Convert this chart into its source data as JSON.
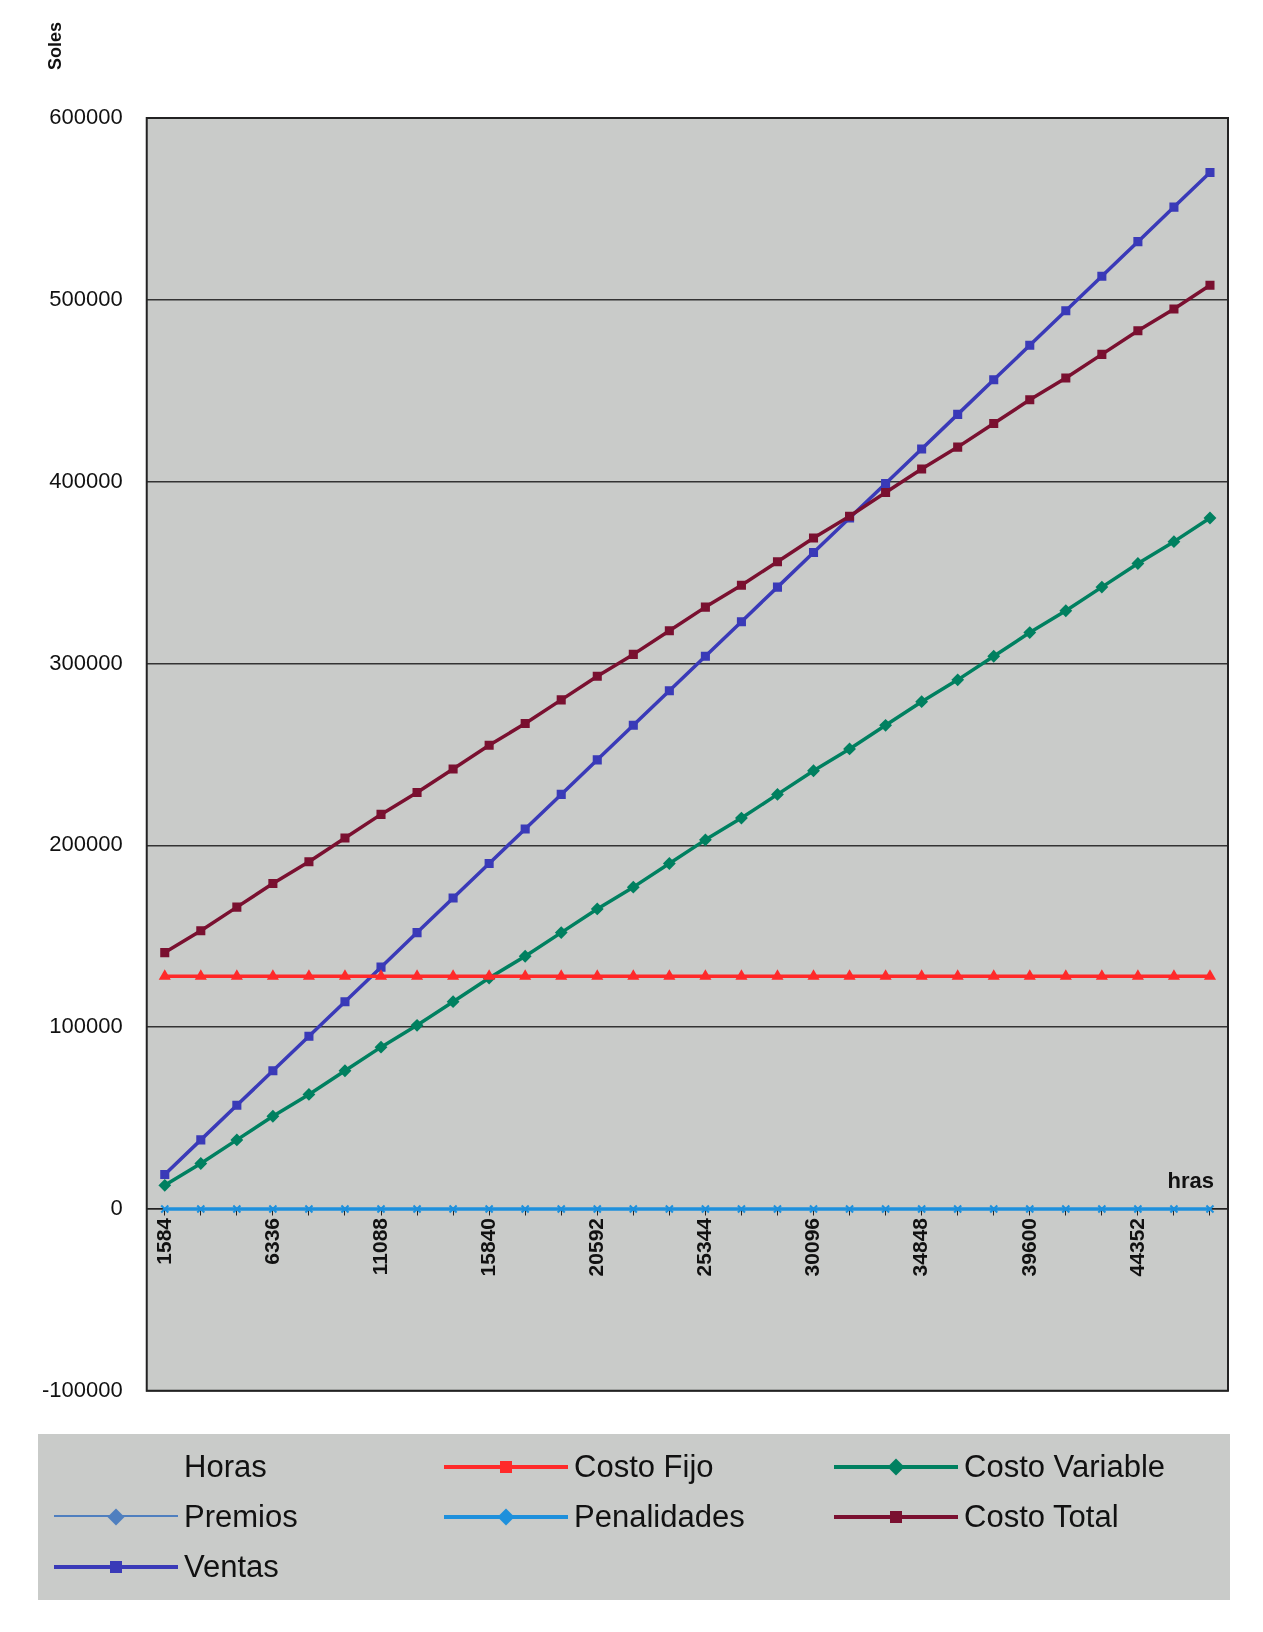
{
  "chart_data": {
    "type": "line",
    "ylabel": "Soles",
    "xlabel": "hras",
    "categories": [
      "1584",
      null,
      null,
      "6336",
      null,
      null,
      "11088",
      null,
      null,
      "15840",
      null,
      null,
      "20592",
      null,
      null,
      "25344",
      null,
      null,
      "30096",
      null,
      null,
      "34848",
      null,
      null,
      "39600",
      null,
      null,
      "44352",
      null,
      null
    ],
    "ylim": [
      -100000,
      600000
    ],
    "yticks": [
      -100000,
      0,
      100000,
      200000,
      300000,
      400000,
      500000,
      600000
    ],
    "grid": "y",
    "legend": "bottom",
    "series": [
      {
        "name": "Horas",
        "values": [
          null,
          null,
          null,
          null,
          null,
          null,
          null,
          null,
          null,
          null,
          null,
          null,
          null,
          null,
          null,
          null,
          null,
          null,
          null,
          null,
          null,
          null,
          null,
          null,
          null,
          null,
          null,
          null,
          null,
          null
        ]
      },
      {
        "name": "Costo Fijo",
        "color": "#ff2a2a",
        "marker": "triangle",
        "values": [
          128000,
          128000,
          128000,
          128000,
          128000,
          128000,
          128000,
          128000,
          128000,
          128000,
          128000,
          128000,
          128000,
          128000,
          128000,
          128000,
          128000,
          128000,
          128000,
          128000,
          128000,
          128000,
          128000,
          128000,
          128000,
          128000,
          128000,
          128000,
          128000,
          128000
        ]
      },
      {
        "name": "Costo Variable",
        "color": "#008060",
        "marker": "diamond",
        "values": [
          13000,
          25000,
          38000,
          51000,
          63000,
          76000,
          89000,
          101000,
          114000,
          127000,
          139000,
          152000,
          165000,
          177000,
          190000,
          203000,
          215000,
          228000,
          241000,
          253000,
          266000,
          279000,
          291000,
          304000,
          317000,
          329000,
          342000,
          355000,
          367000,
          380000
        ]
      },
      {
        "name": "Premios",
        "color": "#4f7fbf",
        "marker": "diamond",
        "values": [
          null,
          null,
          null,
          null,
          null,
          null,
          null,
          null,
          null,
          null,
          null,
          null,
          null,
          null,
          null,
          null,
          null,
          null,
          null,
          null,
          null,
          null,
          null,
          null,
          null,
          null,
          null,
          null,
          null,
          null
        ]
      },
      {
        "name": "Penalidades",
        "color": "#1e90dc",
        "marker": "cross",
        "values": [
          0,
          0,
          0,
          0,
          0,
          0,
          0,
          0,
          0,
          0,
          0,
          0,
          0,
          0,
          0,
          0,
          0,
          0,
          0,
          0,
          0,
          0,
          0,
          0,
          0,
          0,
          0,
          0,
          0,
          0
        ]
      },
      {
        "name": "Costo Total",
        "color": "#7a1030",
        "marker": "square",
        "values": [
          141000,
          153000,
          166000,
          179000,
          191000,
          204000,
          217000,
          229000,
          242000,
          255000,
          267000,
          280000,
          293000,
          305000,
          318000,
          331000,
          343000,
          356000,
          369000,
          381000,
          394000,
          407000,
          419000,
          432000,
          445000,
          457000,
          470000,
          483000,
          495000,
          508000
        ]
      },
      {
        "name": "Ventas",
        "color": "#3a3ab8",
        "marker": "square",
        "values": [
          19000,
          38000,
          57000,
          76000,
          95000,
          114000,
          133000,
          152000,
          171000,
          190000,
          209000,
          228000,
          247000,
          266000,
          285000,
          304000,
          323000,
          342000,
          361000,
          380000,
          399000,
          418000,
          437000,
          456000,
          475000,
          494000,
          513000,
          532000,
          551000,
          570000
        ]
      }
    ]
  }
}
